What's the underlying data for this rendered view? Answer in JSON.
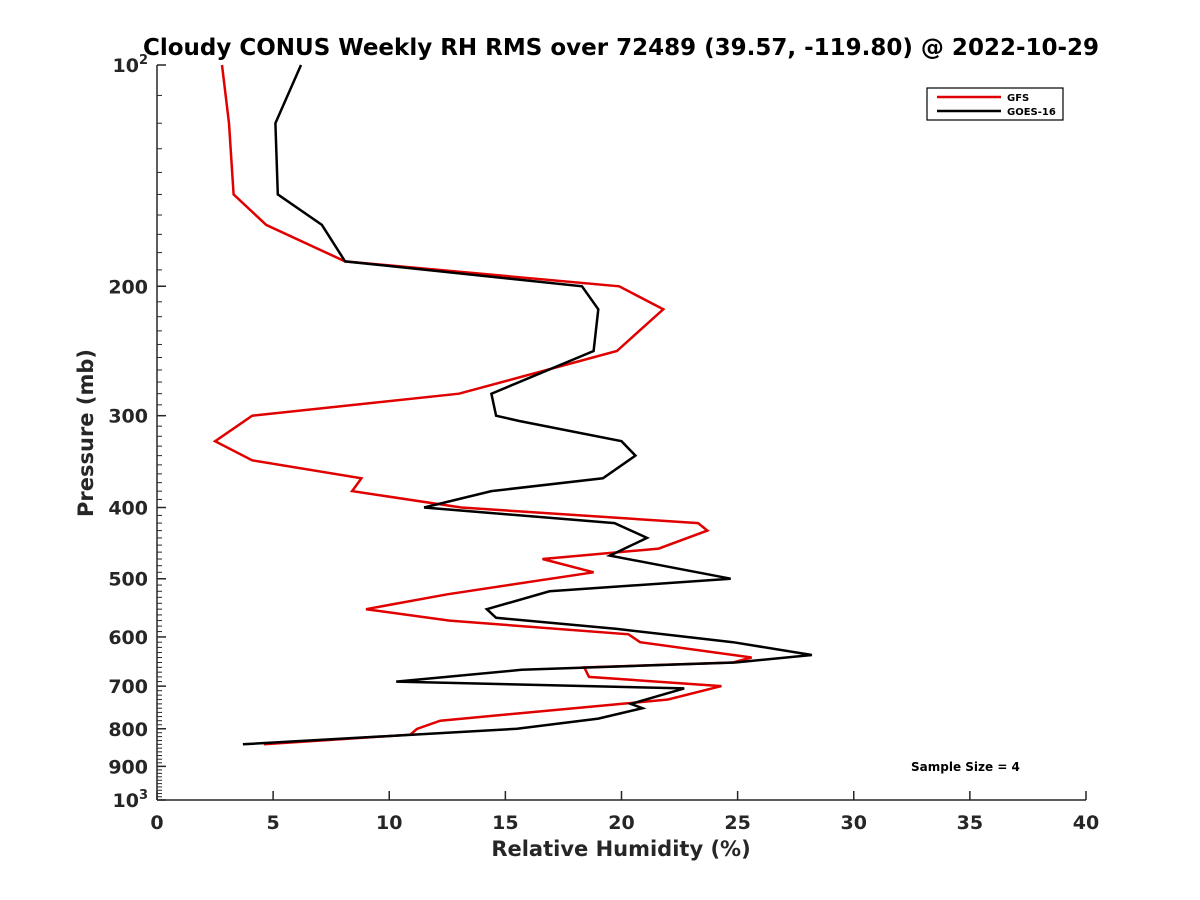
{
  "chart_data": {
    "type": "line",
    "title": "Cloudy CONUS Weekly RH RMS over 72489 (39.57, -119.80) @ 2022-10-29",
    "xlabel": "Relative Humidity (%)",
    "ylabel": "Pressure (mb)",
    "xlim": [
      0,
      40
    ],
    "ylim": [
      100,
      1000
    ],
    "y_scale": "log",
    "y_reversed": true,
    "grid": false,
    "legend_position": "top-right",
    "x_ticks": [
      0,
      5,
      10,
      15,
      20,
      25,
      30,
      35,
      40
    ],
    "x_tick_labels": [
      "0",
      "5",
      "10",
      "15",
      "20",
      "25",
      "30",
      "35",
      "40"
    ],
    "y_ticks": [
      200,
      300,
      400,
      500,
      600,
      700,
      800,
      900
    ],
    "y_tick_labels": [
      "200",
      "300",
      "400",
      "500",
      "600",
      "700",
      "800",
      "900"
    ],
    "y_decade_labels": [
      {
        "value": 100,
        "base": "10",
        "exp": "2"
      },
      {
        "value": 1000,
        "base": "10",
        "exp": "3"
      }
    ],
    "series": [
      {
        "name": "GFS",
        "color": "#e00000",
        "x": [
          2.8,
          3.1,
          3.3,
          4.7,
          8.1,
          19.9,
          21.8,
          19.8,
          13.0,
          4.1,
          2.5,
          4.1,
          8.8,
          8.4,
          13.1,
          23.3,
          23.7,
          21.6,
          16.6,
          18.8,
          12.5,
          9.0,
          12.6,
          20.3,
          20.8,
          25.6,
          24.8,
          18.4,
          18.6,
          24.3,
          22.0,
          12.2,
          11.2,
          10.9,
          4.6
        ],
        "y": [
          100,
          120,
          150,
          165,
          185,
          200,
          215,
          245,
          280,
          300,
          325,
          345,
          365,
          380,
          400,
          420,
          430,
          455,
          470,
          490,
          525,
          550,
          570,
          595,
          610,
          640,
          650,
          660,
          680,
          700,
          730,
          780,
          800,
          815,
          840
        ]
      },
      {
        "name": "GOES-16",
        "color": "#000000",
        "x": [
          6.2,
          5.1,
          5.2,
          7.1,
          8.1,
          18.3,
          19.0,
          18.8,
          14.4,
          14.6,
          15.6,
          20.0,
          20.6,
          19.2,
          14.4,
          11.5,
          19.7,
          21.1,
          19.5,
          24.7,
          16.9,
          14.2,
          14.6,
          19.8,
          24.8,
          28.2,
          24.9,
          15.7,
          10.3,
          22.7,
          20.4,
          20.9,
          19.0,
          15.5,
          3.7
        ],
        "y": [
          100,
          120,
          150,
          165,
          185,
          200,
          215,
          245,
          280,
          300,
          305,
          325,
          340,
          365,
          380,
          400,
          420,
          440,
          465,
          500,
          520,
          550,
          565,
          585,
          610,
          635,
          650,
          665,
          690,
          705,
          740,
          750,
          775,
          800,
          840
        ]
      }
    ],
    "annotations": [
      "Sample Size = 4"
    ]
  }
}
